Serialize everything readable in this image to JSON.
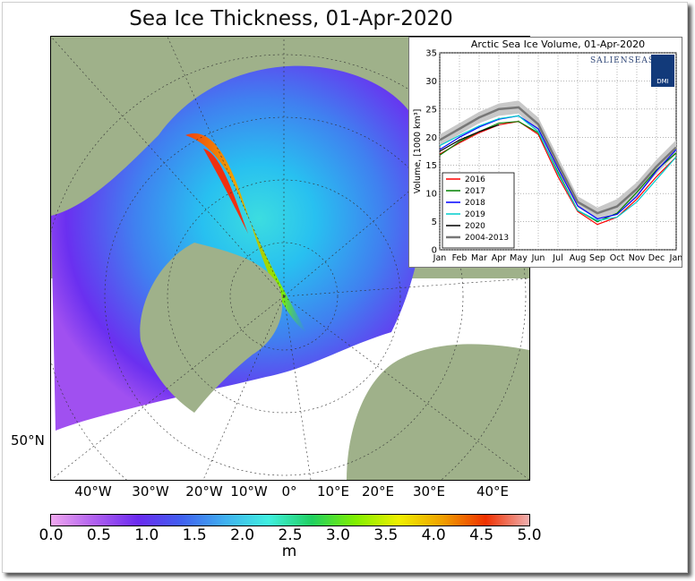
{
  "map": {
    "title": "Sea Ice Thickness, 01-Apr-2020",
    "lat_label": "50°N",
    "lon_labels": [
      "40°W",
      "30°W",
      "20°W",
      "10°W",
      "0°",
      "10°E",
      "20°E",
      "30°E",
      "40°E"
    ],
    "colorbar": {
      "ticks": [
        "0.0",
        "0.5",
        "1.0",
        "1.5",
        "2.0",
        "2.5",
        "3.0",
        "3.5",
        "4.0",
        "4.5",
        "5.0"
      ],
      "unit": "m",
      "colors": [
        "#f0a8f0",
        "#b060f0",
        "#6a2af0",
        "#4060f0",
        "#40b0f0",
        "#40f0e0",
        "#20d060",
        "#80f000",
        "#f0f000",
        "#f0a000",
        "#f03000",
        "#f0b0b0"
      ]
    }
  },
  "chart_data": {
    "type": "line",
    "title": "Arctic Sea Ice Volume, 01-Apr-2020",
    "ylabel": "Volume, [1000 km³]",
    "xlabel": "",
    "categories": [
      "Jan",
      "Feb",
      "Mar",
      "Apr",
      "May",
      "Jun",
      "Jul",
      "Aug",
      "Sep",
      "Oct",
      "Nov",
      "Dec",
      "Jan"
    ],
    "ylim": [
      0,
      35
    ],
    "yticks": [
      0,
      5,
      10,
      15,
      20,
      25,
      30,
      35
    ],
    "grid": true,
    "legend_position": "lower-left",
    "logo_text": "SALIENSEAS",
    "logo_badge": "DMI",
    "band": {
      "name": "2004-2013",
      "x": [
        0,
        1,
        2,
        3,
        4,
        5,
        6,
        7,
        8,
        9,
        10,
        11,
        12
      ],
      "lower": [
        18.5,
        20.5,
        22.5,
        23.8,
        24.2,
        21.0,
        14.0,
        7.5,
        5.5,
        6.5,
        9.5,
        13.5,
        17.0
      ],
      "upper": [
        20.5,
        22.5,
        24.5,
        26.0,
        26.5,
        23.5,
        16.5,
        9.5,
        7.5,
        9.0,
        12.0,
        16.0,
        19.5
      ]
    },
    "series": [
      {
        "name": "2016",
        "color": "#ff0000",
        "x": [
          0,
          1,
          2,
          3,
          4,
          5,
          6,
          7,
          8,
          9,
          10,
          11,
          12
        ],
        "values": [
          17.0,
          19.0,
          20.8,
          22.2,
          22.8,
          20.5,
          13.0,
          6.8,
          4.5,
          5.8,
          9.0,
          13.0,
          16.5
        ]
      },
      {
        "name": "2017",
        "color": "#008000",
        "x": [
          0,
          1,
          2,
          3,
          4,
          5,
          6,
          7,
          8,
          9,
          10,
          11,
          12
        ],
        "values": [
          16.8,
          19.2,
          21.0,
          22.5,
          22.8,
          20.8,
          13.8,
          7.0,
          5.0,
          6.5,
          10.2,
          14.2,
          17.2
        ]
      },
      {
        "name": "2018",
        "color": "#0000ff",
        "x": [
          0,
          1,
          2,
          3,
          4,
          5,
          6,
          7,
          8,
          9,
          10,
          11,
          12
        ],
        "values": [
          17.8,
          20.0,
          21.8,
          23.2,
          23.8,
          21.5,
          14.5,
          7.8,
          5.5,
          6.3,
          9.5,
          14.0,
          17.8
        ]
      },
      {
        "name": "2019",
        "color": "#00cccc",
        "x": [
          0,
          1,
          2,
          3,
          4,
          5,
          6,
          7,
          8,
          9,
          10,
          11,
          12
        ],
        "values": [
          18.5,
          20.3,
          22.0,
          23.3,
          23.8,
          21.0,
          13.5,
          7.0,
          5.2,
          5.8,
          8.5,
          12.5,
          16.5
        ]
      },
      {
        "name": "2020",
        "color": "#000000",
        "x": [
          0,
          1,
          2,
          3
        ],
        "values": [
          17.5,
          19.5,
          21.0,
          22.2
        ]
      },
      {
        "name": "2004-2013",
        "color": "#777777",
        "x": [
          0,
          1,
          2,
          3,
          4,
          5,
          6,
          7,
          8,
          9,
          10,
          11,
          12
        ],
        "values": [
          19.5,
          21.5,
          23.5,
          25.0,
          25.3,
          22.3,
          15.2,
          8.5,
          6.5,
          7.7,
          10.8,
          14.8,
          18.2
        ]
      }
    ]
  }
}
